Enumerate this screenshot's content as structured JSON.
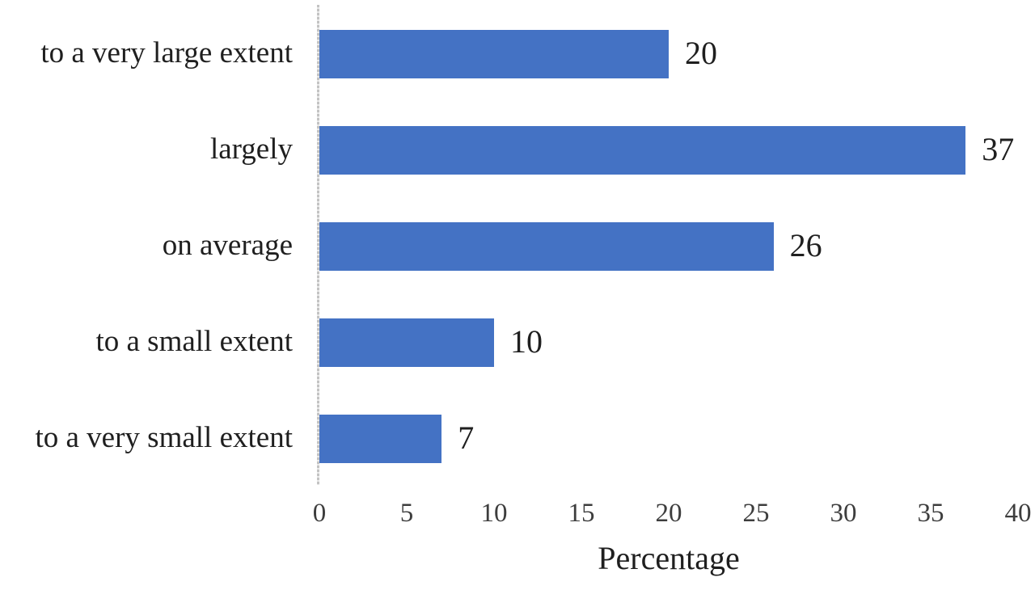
{
  "chart_data": {
    "type": "bar",
    "orientation": "horizontal",
    "title": "",
    "categories": [
      "to a very large extent",
      "largely",
      "on average",
      "to a small extent",
      "to a very small extent"
    ],
    "values": [
      20,
      37,
      26,
      10,
      7
    ],
    "xlabel": "Percentage",
    "ylabel": "",
    "xlim": [
      0,
      40
    ],
    "xticks": [
      0,
      5,
      10,
      15,
      20,
      25,
      30,
      35,
      40
    ],
    "grid": false,
    "legend": false,
    "data_labels": true,
    "bar_color": "#4472C4",
    "axis_line_color": "#c3c3c3",
    "text_color": "#1f1f1f",
    "tick_text_color": "#3d3d3d",
    "background_color": "#ffffff"
  }
}
